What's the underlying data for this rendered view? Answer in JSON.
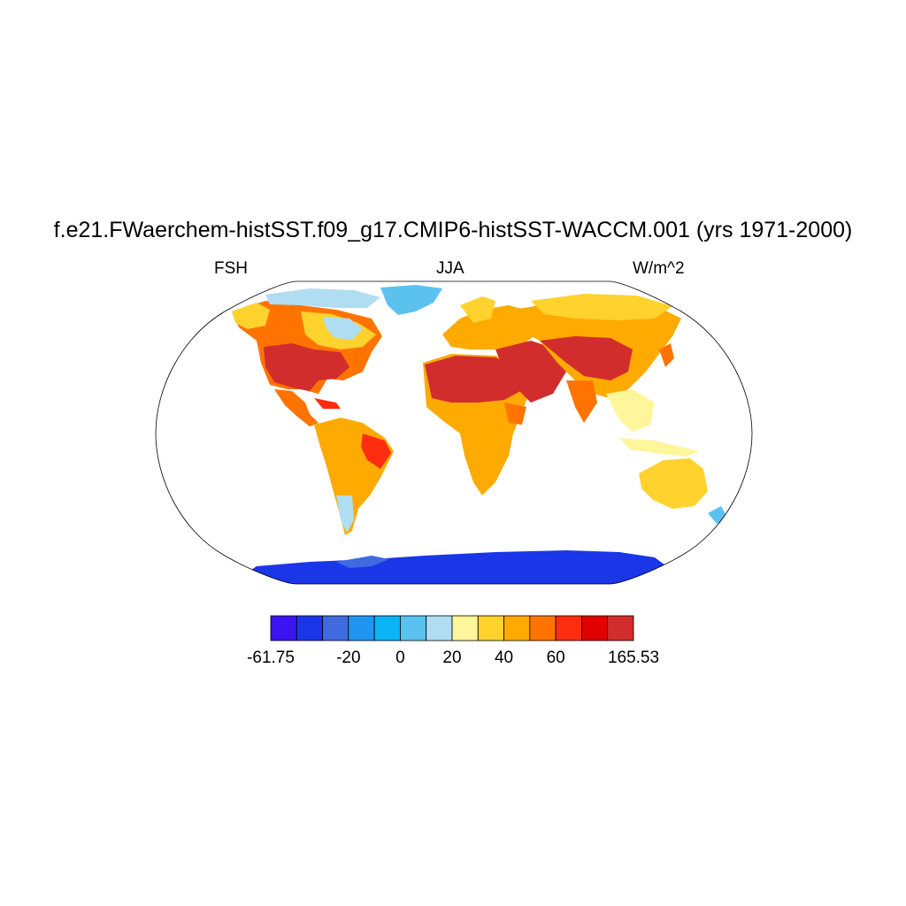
{
  "title": "f.e21.FWaerchem-histSST.f09_g17.CMIP6-histSST-WACCM.001 (yrs 1971-2000)",
  "left_string": "FSH",
  "center_string": "JJA",
  "right_string": "W/m^2",
  "colorbar": {
    "colors": [
      "#3b14f0",
      "#1b36e8",
      "#3f6ae0",
      "#2196f0",
      "#0ab4f5",
      "#5bc2f0",
      "#b1ddf2",
      "#fff59a",
      "#ffd22e",
      "#ffaa00",
      "#ff7400",
      "#ff2d0f",
      "#e00000",
      "#d22d2d"
    ],
    "labels": [
      "-61.75",
      "-20",
      "0",
      "20",
      "40",
      "60",
      "165.53"
    ]
  },
  "chart_data": {
    "type": "heatmap",
    "variable": "FSH",
    "season": "JJA",
    "units": "W/m^2",
    "projection": "Robinson",
    "range": [
      -61.75,
      165.53
    ],
    "colorbar_ticks": [
      -61.75,
      -20,
      0,
      20,
      40,
      60,
      165.53
    ],
    "regions": [
      {
        "name": "North America",
        "level": "40-165"
      },
      {
        "name": "Arctic",
        "level": "0-20"
      },
      {
        "name": "Central America",
        "level": "20-60"
      },
      {
        "name": "South America",
        "level": "20-60"
      },
      {
        "name": "Greenland",
        "level": "0-20"
      },
      {
        "name": "Europe",
        "level": "20-60"
      },
      {
        "name": "North Africa",
        "level": "60-165"
      },
      {
        "name": "Southern Africa",
        "level": "20-60"
      },
      {
        "name": "Middle East",
        "level": "60-165"
      },
      {
        "name": "Central Asia",
        "level": "40-165"
      },
      {
        "name": "Siberia",
        "level": "20-60"
      },
      {
        "name": "Southeast Asia",
        "level": "0-40"
      },
      {
        "name": "Australia",
        "level": "20-60"
      },
      {
        "name": "New Zealand",
        "level": "0-20"
      },
      {
        "name": "Antarctica",
        "level": "-61.75-0"
      }
    ]
  }
}
